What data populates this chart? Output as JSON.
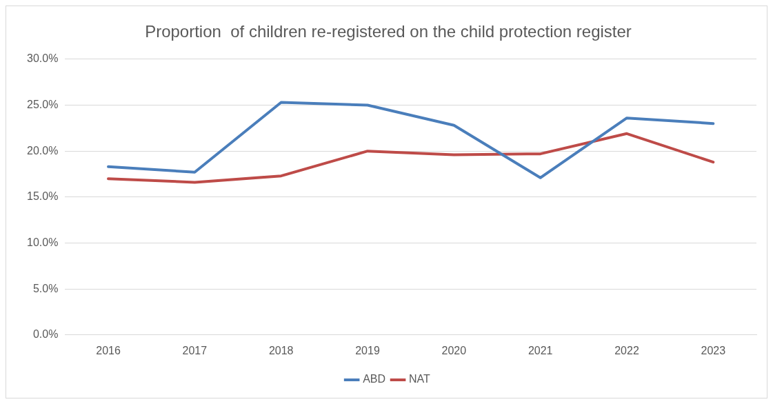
{
  "chart_data": {
    "type": "line",
    "title": "Proportion  of children re-registered on the child protection register",
    "categories": [
      "2016",
      "2017",
      "2018",
      "2019",
      "2020",
      "2021",
      "2022",
      "2023"
    ],
    "series": [
      {
        "name": "ABD",
        "color": "#4a7ebb",
        "values": [
          18.3,
          17.7,
          25.3,
          25.0,
          22.8,
          17.1,
          23.6,
          23.0
        ]
      },
      {
        "name": "NAT",
        "color": "#be4b48",
        "values": [
          17.0,
          16.6,
          17.3,
          20.0,
          19.6,
          19.7,
          21.9,
          18.8
        ]
      }
    ],
    "ylim": [
      0,
      30
    ],
    "yticks": [
      {
        "value": 0,
        "label": "0.0%"
      },
      {
        "value": 5,
        "label": "5.0%"
      },
      {
        "value": 10,
        "label": "10.0%"
      },
      {
        "value": 15,
        "label": "15.0%"
      },
      {
        "value": 20,
        "label": "20.0%"
      },
      {
        "value": 25,
        "label": "25.0%"
      },
      {
        "value": 30,
        "label": "30.0%"
      }
    ],
    "grid": "y",
    "legend": "bottom",
    "marker": "none",
    "line_style": "solid"
  }
}
